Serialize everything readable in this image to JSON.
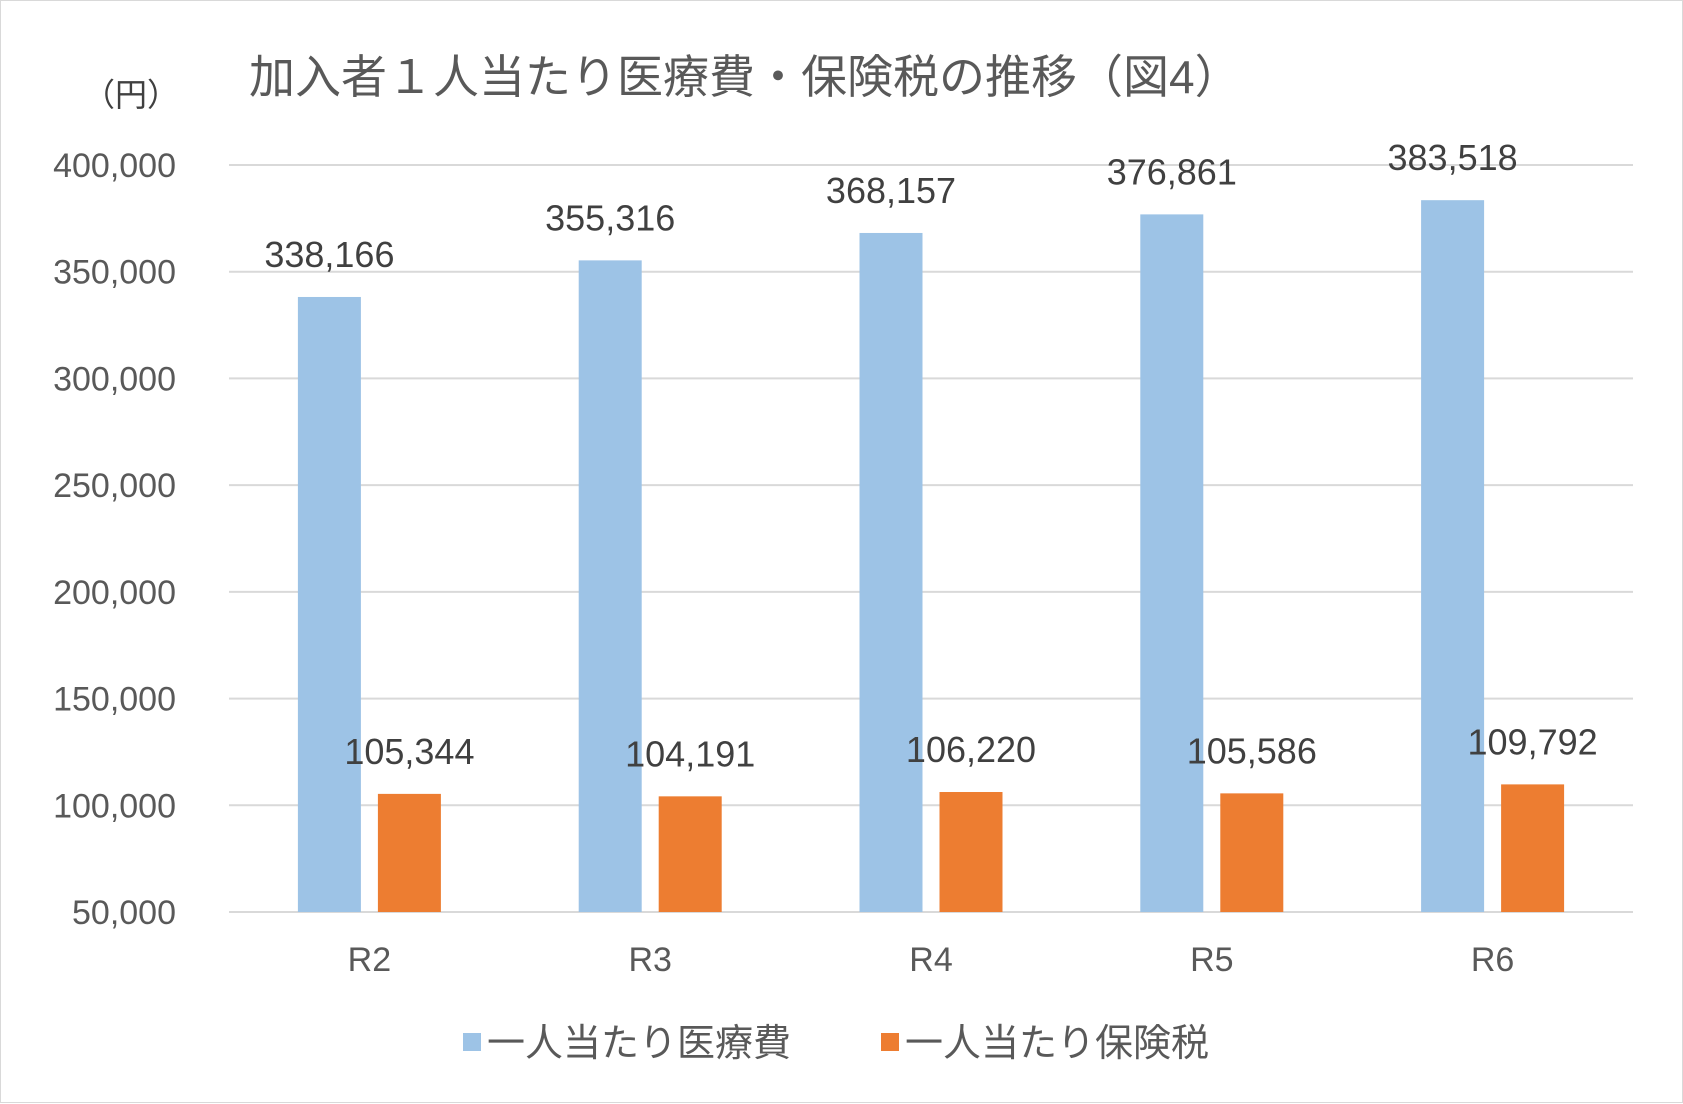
{
  "chart_data": {
    "type": "bar",
    "title": "加入者１人当たり医療費・保険税の推移（図4）",
    "unit_label": "（円）",
    "categories": [
      "R2",
      "R3",
      "R4",
      "R5",
      "R6"
    ],
    "series": [
      {
        "name": "一人当たり医療費",
        "values": [
          338166,
          355316,
          368157,
          376861,
          383518
        ],
        "labels": [
          "338,166",
          "355,316",
          "368,157",
          "376,861",
          "383,518"
        ],
        "color": "#9dc3e6"
      },
      {
        "name": "一人当たり保険税",
        "values": [
          105344,
          104191,
          106220,
          105586,
          109792
        ],
        "labels": [
          "105,344",
          "104,191",
          "106,220",
          "105,586",
          "109,792"
        ],
        "color": "#ed7d31"
      }
    ],
    "ylim": [
      50000,
      400000
    ],
    "yticks": [
      50000,
      100000,
      150000,
      200000,
      250000,
      300000,
      350000,
      400000
    ],
    "ytick_labels": [
      "50,000",
      "100,000",
      "150,000",
      "200,000",
      "250,000",
      "300,000",
      "350,000",
      "400,000"
    ],
    "grid": true,
    "grid_color": "#d9d9d9",
    "legend_position": "bottom"
  }
}
